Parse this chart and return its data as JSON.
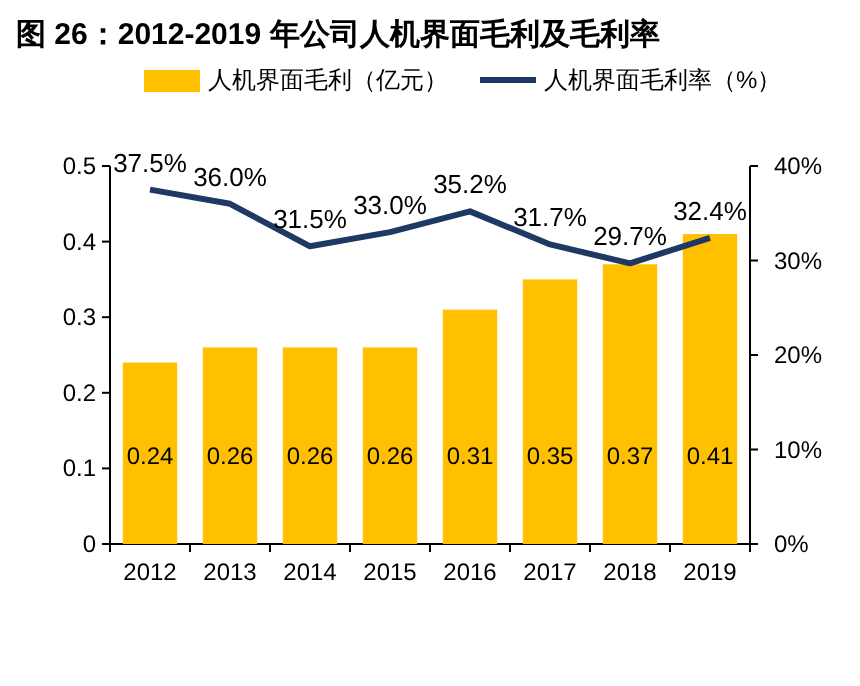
{
  "chart_data": {
    "type": "bar",
    "title": "图 26：2012-2019 年公司人机界面毛利及毛利率",
    "categories": [
      "2012",
      "2013",
      "2014",
      "2015",
      "2016",
      "2017",
      "2018",
      "2019"
    ],
    "series": [
      {
        "name": "人机界面毛利（亿元）",
        "color": "#ffc000",
        "values": [
          0.24,
          0.26,
          0.26,
          0.26,
          0.31,
          0.35,
          0.37,
          0.41
        ],
        "value_labels": [
          "0.24",
          "0.26",
          "0.26",
          "0.26",
          "0.31",
          "0.35",
          "0.37",
          "0.41"
        ]
      },
      {
        "name": "人机界面毛利率（%）",
        "type": "line",
        "axis": "y2",
        "color": "#1f3864",
        "values": [
          37.5,
          36.0,
          31.5,
          33.0,
          35.2,
          31.7,
          29.7,
          32.4
        ],
        "value_labels": [
          "37.5%",
          "36.0%",
          "31.5%",
          "33.0%",
          "35.2%",
          "31.7%",
          "29.7%",
          "32.4%"
        ]
      }
    ],
    "ylim": [
      0,
      0.5
    ],
    "yticks": [
      0,
      0.1,
      0.2,
      0.3,
      0.4,
      0.5
    ],
    "y2lim": [
      0,
      40
    ],
    "y2ticks": [
      {
        "value": 0,
        "label": "0%"
      },
      {
        "value": 10,
        "label": "10%"
      },
      {
        "value": 20,
        "label": "20%"
      },
      {
        "value": 30,
        "label": "30%"
      },
      {
        "value": 40,
        "label": "40%"
      }
    ],
    "legend": "top",
    "grid": false,
    "marker": "none",
    "line_style": "solid"
  }
}
